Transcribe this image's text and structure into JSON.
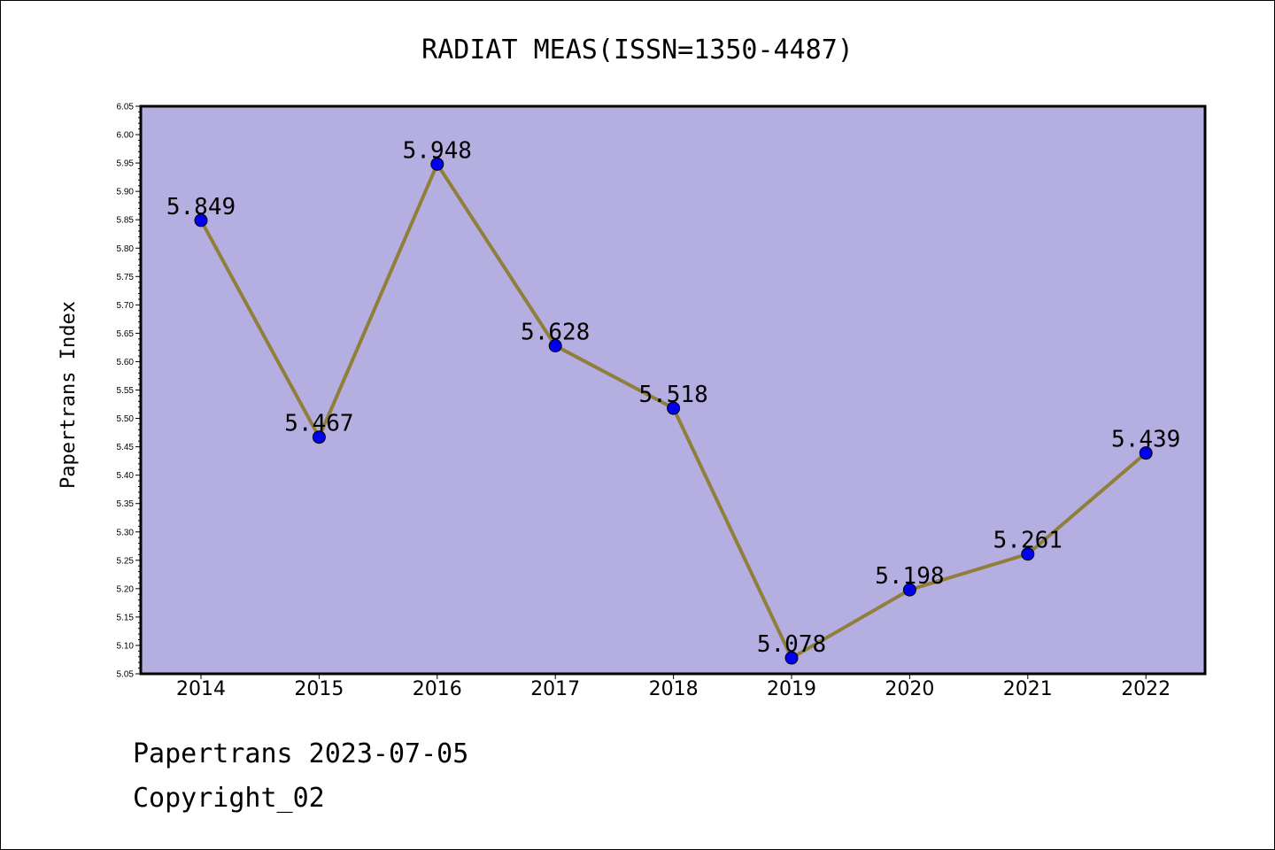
{
  "chart_data": {
    "type": "line",
    "title": "RADIAT MEAS(ISSN=1350-4487)",
    "ylabel": "Papertrans Index",
    "xlabel": "",
    "categories": [
      "2014",
      "2015",
      "2016",
      "2017",
      "2018",
      "2019",
      "2020",
      "2021",
      "2022"
    ],
    "values": [
      5.849,
      5.467,
      5.948,
      5.628,
      5.518,
      5.078,
      5.198,
      5.261,
      5.439
    ],
    "data_labels": [
      "5.849",
      "5.467",
      "5.948",
      "5.628",
      "5.518",
      "5.078",
      "5.198",
      "5.261",
      "5.439"
    ],
    "ylim": [
      5.05,
      6.05
    ],
    "yticks": [
      "5.05",
      "5.10",
      "5.15",
      "5.20",
      "5.25",
      "5.30",
      "5.35",
      "5.40",
      "5.45",
      "5.50",
      "5.55",
      "5.60",
      "5.65",
      "5.70",
      "5.75",
      "5.80",
      "5.85",
      "5.90",
      "5.95",
      "6.00",
      "6.05"
    ],
    "grid": false,
    "colors": {
      "plot_background": "#b4aee1",
      "line": "#8f7f3a",
      "marker": "#0000ee"
    }
  },
  "footer": {
    "line1": "Papertrans 2023-07-05",
    "line2": "Copyright_02"
  }
}
